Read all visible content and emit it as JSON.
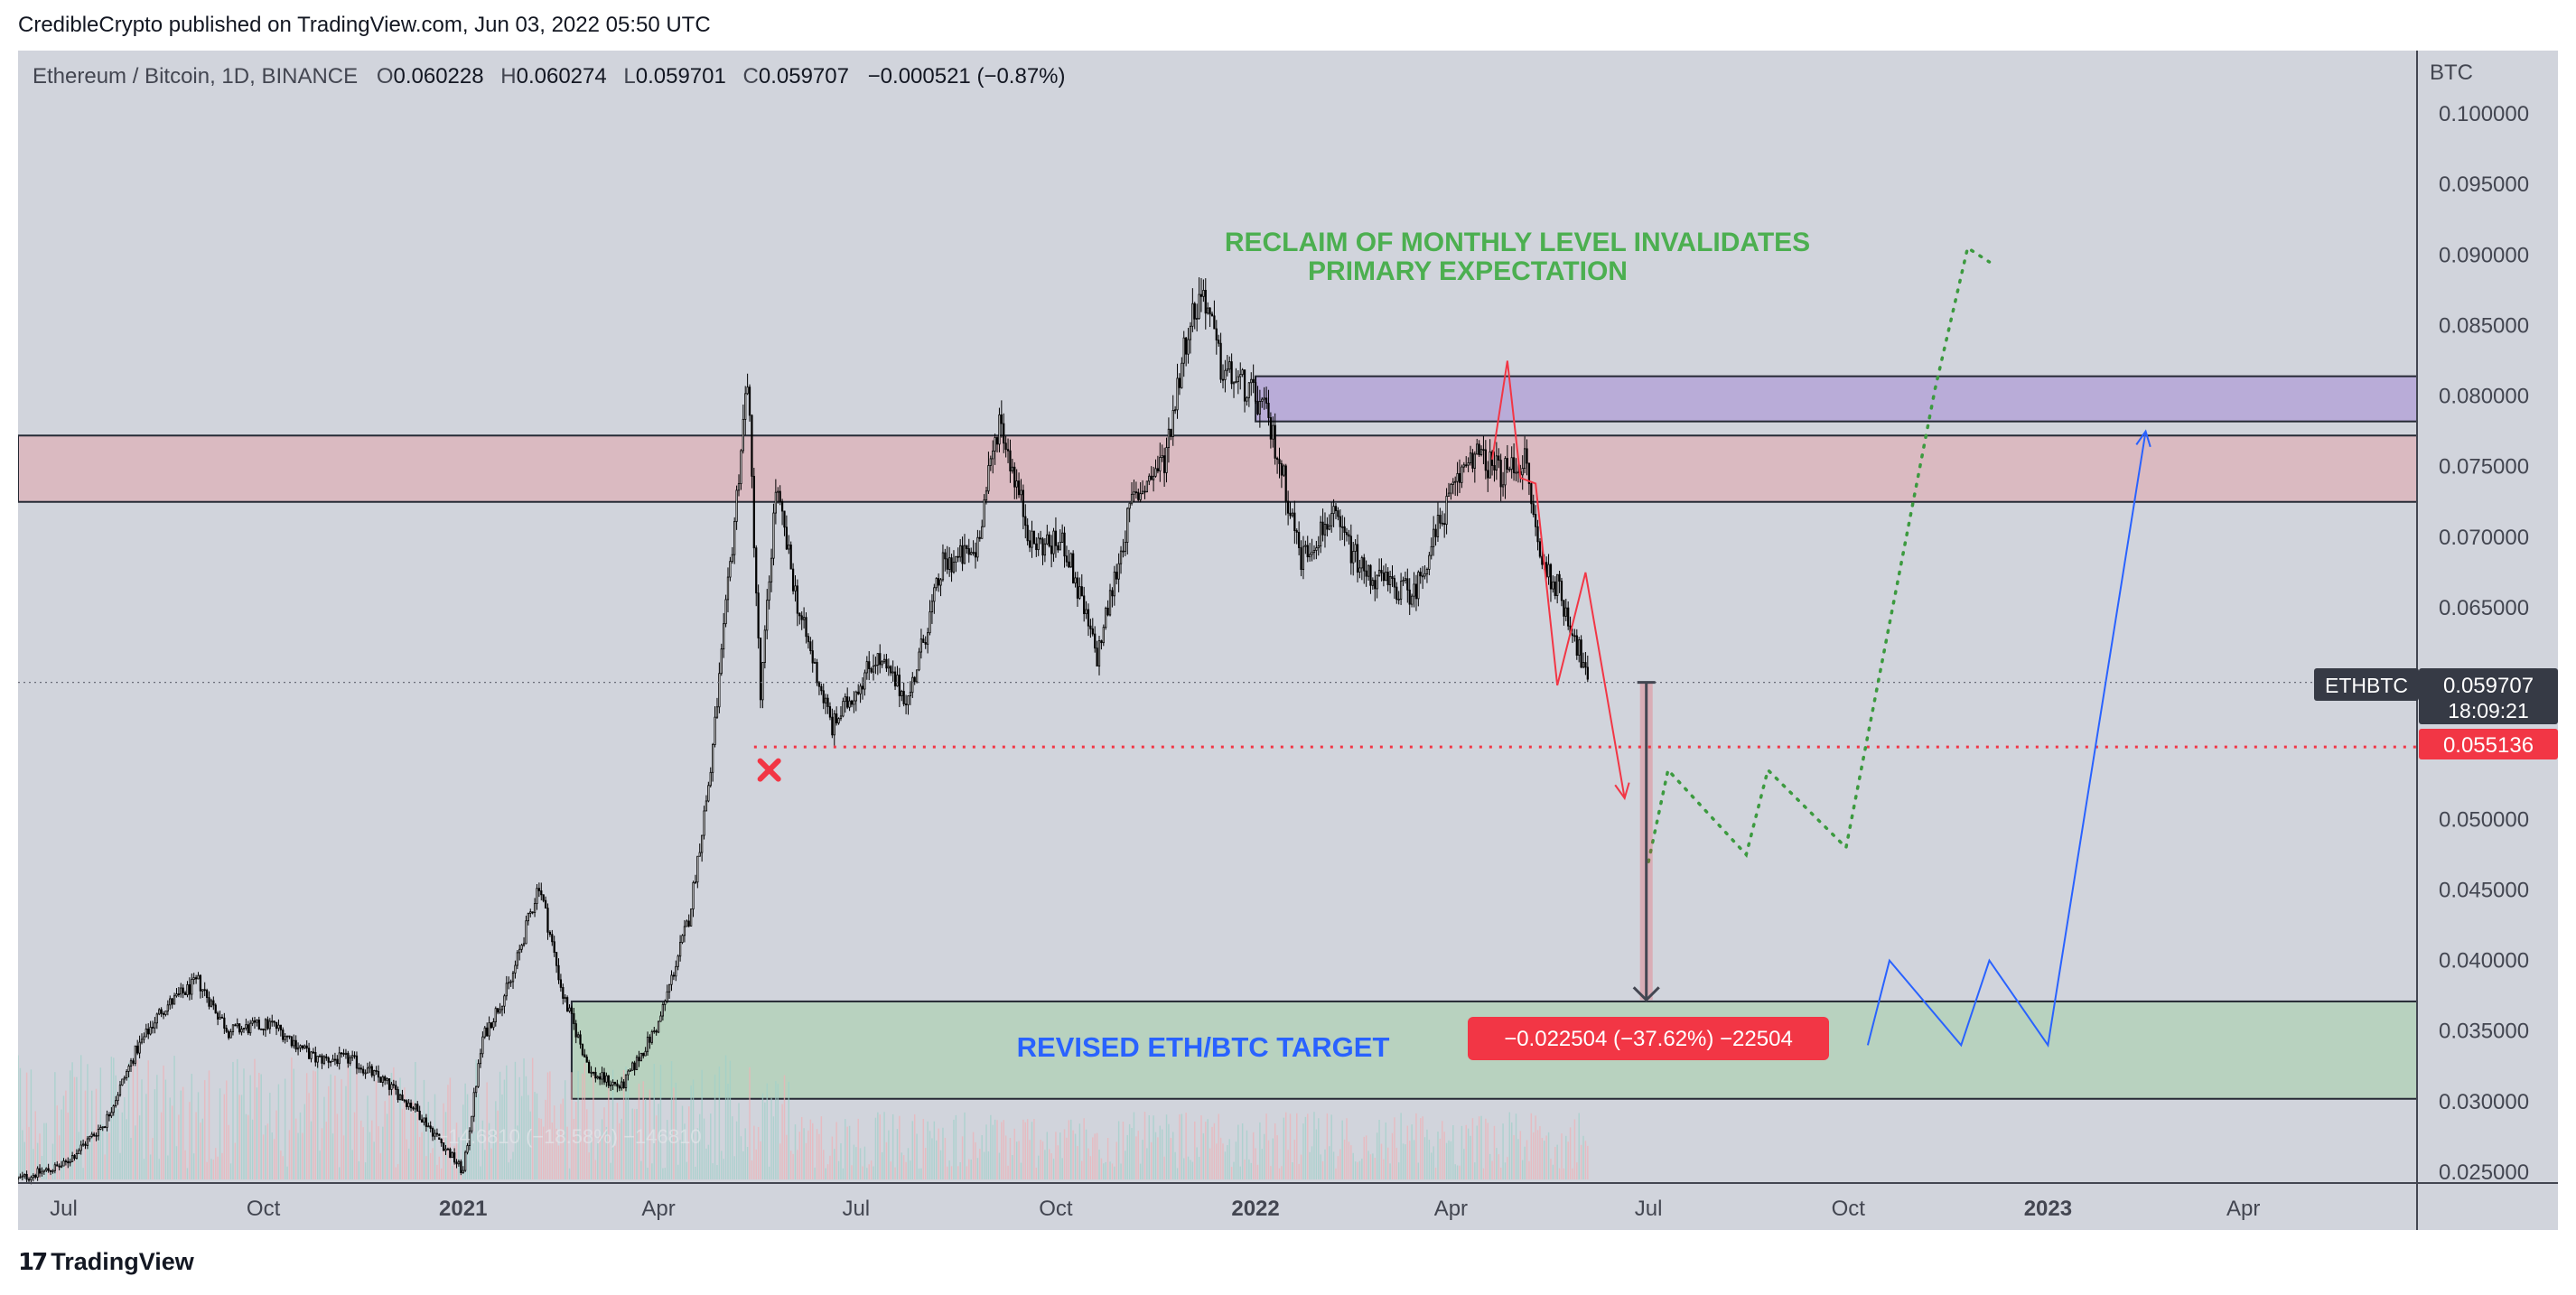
{
  "publisher": "CredibleCrypto published on TradingView.com, Jun 03, 2022 05:50 UTC",
  "footer_brand": "TradingView",
  "legend": {
    "symbol": "Ethereum / Bitcoin, 1D, BINANCE",
    "open_label": "O",
    "open": "0.060228",
    "high_label": "H",
    "high": "0.060274",
    "low_label": "L",
    "low": "0.059701",
    "close_label": "C",
    "close": "0.059707",
    "change": "−0.000521 (−0.87%)"
  },
  "axis": {
    "currency": "BTC",
    "price_ticks": [
      "0.100000",
      "0.095000",
      "0.090000",
      "0.085000",
      "0.080000",
      "0.075000",
      "0.070000",
      "0.065000",
      "0.060000",
      "0.055000",
      "0.050000",
      "0.045000",
      "0.040000",
      "0.035000",
      "0.030000",
      "0.025000"
    ],
    "time_ticks": [
      "Jul",
      "Oct",
      "2021",
      "Apr",
      "Jul",
      "Oct",
      "2022",
      "Apr",
      "Jul",
      "Oct",
      "2023",
      "Apr"
    ]
  },
  "badges": {
    "symbol": "ETHBTC",
    "last_price": "0.059707",
    "countdown": "18:09:21",
    "level": "0.055136"
  },
  "annotations": {
    "green_line1": "RECLAIM OF MONTHLY LEVEL INVALIDATES",
    "green_line2": "PRIMARY EXPECTATION",
    "target_label": "REVISED ETH/BTC TARGET",
    "measure_label": "−0.022504 (−37.62%) −22504",
    "faint_label": "−14.6810 (−18.58%) −146810"
  },
  "colors": {
    "background": "#d1d4dc",
    "candle": "#000000",
    "red_zone": "#dcb8bf",
    "purple_zone": "#b7a8d8",
    "green_zone": "#b6d2bc",
    "red": "#f23645",
    "green": "#4caf50",
    "blue": "#2962ff",
    "badge_dark": "#363a45",
    "badge_red": "#f23645"
  },
  "chart_data": {
    "type": "candlestick",
    "symbol": "Ethereum / Bitcoin, 1D, BINANCE",
    "ylabel": "BTC",
    "ylim": [
      0.025,
      0.1
    ],
    "x_range": [
      "2020-06-10",
      "2023-06-20"
    ],
    "price_path": [
      [
        "2020-06-10",
        0.0245
      ],
      [
        "2020-07-01",
        0.0255
      ],
      [
        "2020-07-20",
        0.0285
      ],
      [
        "2020-08-03",
        0.0335
      ],
      [
        "2020-08-15",
        0.0365
      ],
      [
        "2020-09-01",
        0.0385
      ],
      [
        "2020-09-15",
        0.035
      ],
      [
        "2020-10-05",
        0.0355
      ],
      [
        "2020-10-25",
        0.033
      ],
      [
        "2020-11-10",
        0.033
      ],
      [
        "2020-11-25",
        0.0315
      ],
      [
        "2020-12-10",
        0.0295
      ],
      [
        "2020-12-25",
        0.0265
      ],
      [
        "2021-01-01",
        0.025
      ],
      [
        "2021-01-10",
        0.0345
      ],
      [
        "2021-01-23",
        0.0385
      ],
      [
        "2021-02-05",
        0.0455
      ],
      [
        "2021-02-16",
        0.0375
      ],
      [
        "2021-03-01",
        0.032
      ],
      [
        "2021-03-15",
        0.031
      ],
      [
        "2021-04-01",
        0.0355
      ],
      [
        "2021-04-15",
        0.043
      ],
      [
        "2021-04-25",
        0.0535
      ],
      [
        "2021-05-05",
        0.0695
      ],
      [
        "2021-05-12",
        0.0815
      ],
      [
        "2021-05-18",
        0.0585
      ],
      [
        "2021-05-25",
        0.0735
      ],
      [
        "2021-06-05",
        0.0645
      ],
      [
        "2021-06-20",
        0.0565
      ],
      [
        "2021-07-10",
        0.0615
      ],
      [
        "2021-07-25",
        0.0585
      ],
      [
        "2021-08-10",
        0.068
      ],
      [
        "2021-08-25",
        0.069
      ],
      [
        "2021-09-05",
        0.0785
      ],
      [
        "2021-09-20",
        0.0695
      ],
      [
        "2021-10-05",
        0.0695
      ],
      [
        "2021-10-20",
        0.0615
      ],
      [
        "2021-11-05",
        0.0725
      ],
      [
        "2021-11-20",
        0.0755
      ],
      [
        "2021-12-01",
        0.085
      ],
      [
        "2021-12-08",
        0.0875
      ],
      [
        "2021-12-16",
        0.082
      ],
      [
        "2021-12-28",
        0.0805
      ],
      [
        "2022-01-05",
        0.079
      ],
      [
        "2022-01-12",
        0.0755
      ],
      [
        "2022-01-22",
        0.0685
      ],
      [
        "2022-02-05",
        0.0715
      ],
      [
        "2022-02-20",
        0.0675
      ],
      [
        "2022-03-05",
        0.0665
      ],
      [
        "2022-03-15",
        0.066
      ],
      [
        "2022-03-28",
        0.0715
      ],
      [
        "2022-04-10",
        0.076
      ],
      [
        "2022-04-25",
        0.0745
      ],
      [
        "2022-05-05",
        0.0755
      ],
      [
        "2022-05-12",
        0.0685
      ],
      [
        "2022-05-20",
        0.0665
      ],
      [
        "2022-05-28",
        0.063
      ],
      [
        "2022-06-03",
        0.0597
      ]
    ],
    "zones": [
      {
        "color": "red",
        "from": 0.0725,
        "to": 0.0772,
        "x_start": "2020-06-10",
        "x_end": "2023-06-20"
      },
      {
        "color": "purple",
        "from": 0.0782,
        "to": 0.0814,
        "x_start": "2022-01-01",
        "x_end": "2023-06-20"
      },
      {
        "color": "green",
        "from": 0.0302,
        "to": 0.0371,
        "x_start": "2021-02-20",
        "x_end": "2023-06-20",
        "label": "REVISED ETH/BTC TARGET"
      }
    ],
    "levels": [
      {
        "value": 0.055136,
        "style": "dotted",
        "color": "red",
        "from": "2021-05-15"
      },
      {
        "value": 0.059707,
        "style": "dotted",
        "color": "gray",
        "from": "2020-06-10"
      }
    ],
    "projections": {
      "red": [
        [
          "2022-04-20",
          0.0755
        ],
        [
          "2022-04-27",
          0.0825
        ],
        [
          "2022-05-03",
          0.0742
        ],
        [
          "2022-05-10",
          0.0738
        ],
        [
          "2022-05-20",
          0.0595
        ],
        [
          "2022-06-02",
          0.0675
        ],
        [
          "2022-06-20",
          0.0515
        ]
      ],
      "green_dotted": [
        [
          "2022-07-01",
          0.047
        ],
        [
          "2022-07-10",
          0.0535
        ],
        [
          "2022-08-15",
          0.0475
        ],
        [
          "2022-08-25",
          0.0535
        ],
        [
          "2022-09-30",
          0.048
        ],
        [
          "2022-11-10",
          0.0805
        ],
        [
          "2022-11-25",
          0.0905
        ],
        [
          "2022-12-05",
          0.0895
        ]
      ],
      "blue": [
        [
          "2022-10-10",
          0.034
        ],
        [
          "2022-10-20",
          0.04
        ],
        [
          "2022-11-22",
          0.034
        ],
        [
          "2022-12-05",
          0.04
        ],
        [
          "2023-01-01",
          0.034
        ],
        [
          "2023-02-15",
          0.0775
        ]
      ]
    },
    "measure": {
      "from": 0.059707,
      "to": 0.037203,
      "date": "2022-06-30",
      "label": "−0.022504 (−37.62%) −22504"
    },
    "invalidation_marker": {
      "date": "2021-05-22",
      "value": 0.0535
    }
  }
}
